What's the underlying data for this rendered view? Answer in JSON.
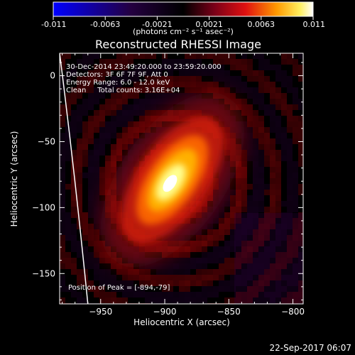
{
  "chart_data": {
    "type": "heatmap",
    "title": "Reconstructed RHESSI Image",
    "xlabel": "Heliocentric X (arcsec)",
    "ylabel": "Heliocentric Y (arcsec)",
    "xlim": [
      -982,
      -792
    ],
    "ylim": [
      -173,
      17
    ],
    "xticks": [
      -950,
      -900,
      -850,
      -800
    ],
    "yticks": [
      0,
      -50,
      -100,
      -150
    ],
    "colorbar": {
      "range": [
        -0.011,
        0.011
      ],
      "ticks": [
        "-0.011",
        "-0.0063",
        "-0.0021",
        "0.0021",
        "0.0063",
        "0.011"
      ],
      "unit_label": "(photons cm⁻² s⁻¹ asec⁻²)",
      "colormap": "blue-black-red-yellow-white"
    },
    "source": {
      "center": [
        -894,
        -79
      ],
      "peak_value": 0.011,
      "major_axis_arcsec": 30,
      "minor_axis_arcsec": 12,
      "orientation_deg": 55
    },
    "annotations": [
      "30-Dec-2014 23:49:20.000 to 23:59:20.000",
      "Detectors: 3F 6F 7F 9F, Att 0",
      "Energy Range: 6.0 - 12.0 keV",
      "Clean     Total counts: 3.16E+04"
    ],
    "peak_text": "Position of Peak = [-894,-79]",
    "limb_curve": [
      [
        -982,
        17
      ],
      [
        -970,
        -75
      ],
      [
        -960,
        -173
      ]
    ],
    "grid": false
  },
  "footer": {
    "timestamp": "22-Sep-2017 06:07"
  },
  "colors": {
    "background": "#000000",
    "text": "#ffffff"
  }
}
